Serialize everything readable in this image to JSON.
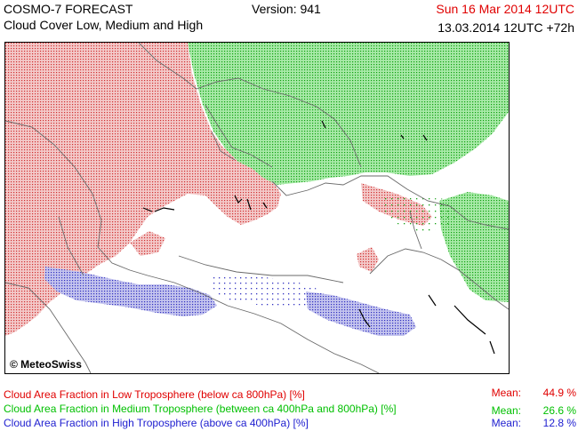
{
  "header": {
    "title": "COSMO-7 FORECAST",
    "subtitle": "Cloud Cover Low, Medium and High",
    "version": "Version: 941",
    "valid_date": "Sun 16 Mar 2014 12UTC",
    "run_date": "13.03.2014 12UTC +72h"
  },
  "map": {
    "copyright": "© MeteoSwiss"
  },
  "legend": {
    "low": {
      "label": "Cloud Area Fraction in Low Troposphere (below ca 800hPa) [%]",
      "mean_label": "Mean:",
      "mean_value": "44.9 %",
      "color": "#e00000"
    },
    "medium": {
      "label": "Cloud Area Fraction in Medium Troposphere (between ca 400hPa and 800hPa) [%]",
      "mean_label": "Mean:",
      "mean_value": "26.6 %",
      "color": "#00c000"
    },
    "high": {
      "label": "Cloud Area Fraction in High Troposphere (above ca 400hPa) [%]",
      "mean_label": "Mean:",
      "mean_value": "12.8 %",
      "color": "#2020d0"
    }
  }
}
